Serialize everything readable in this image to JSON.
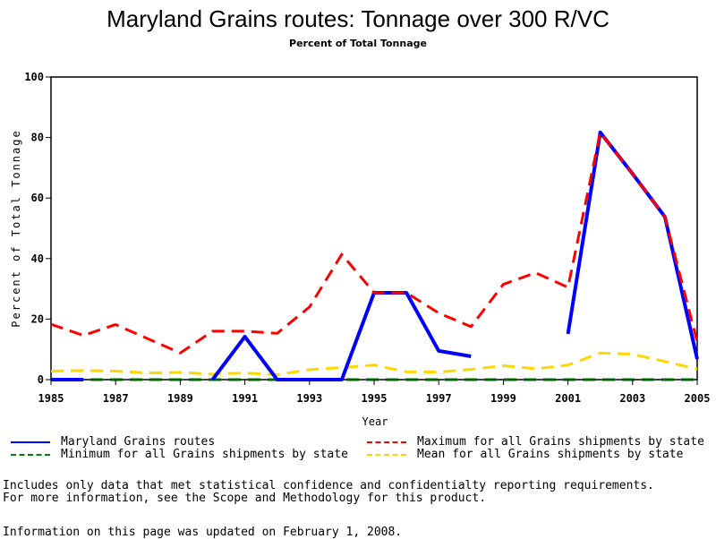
{
  "chart_data": {
    "type": "line",
    "title": "Maryland Grains routes: Tonnage over 300 R/VC",
    "subtitle": "Percent of Total Tonnage",
    "xlabel": "Year",
    "ylabel": "Percent of Total Tonnage",
    "xlim": [
      1985,
      2005
    ],
    "ylim": [
      0,
      100
    ],
    "x_ticks": [
      1985,
      1987,
      1989,
      1991,
      1993,
      1995,
      1997,
      1999,
      2001,
      2003,
      2005
    ],
    "x_minor_ticks": [
      1985,
      1987,
      1989,
      1991,
      1993,
      1995,
      1997,
      1999,
      2001,
      2003,
      2005
    ],
    "y_ticks": [
      0,
      20,
      40,
      60,
      80,
      100
    ],
    "grid": false,
    "legend_position": "bottom",
    "x": [
      1985,
      1986,
      1987,
      1988,
      1989,
      1990,
      1991,
      1992,
      1993,
      1994,
      1995,
      1996,
      1997,
      1998,
      1999,
      2000,
      2001,
      2002,
      2003,
      2004,
      2005
    ],
    "series": [
      {
        "name": "Maryland Grains routes",
        "color": "#0000ff",
        "style": "solid",
        "values": [
          0,
          0,
          null,
          null,
          null,
          0,
          14.2,
          0,
          0,
          0,
          28.7,
          28.7,
          9.5,
          7.7,
          null,
          null,
          15.1,
          81.7,
          68.0,
          53.8,
          6.8
        ]
      },
      {
        "name": "Maximum for all Grains shipments by state",
        "color": "#ff0000",
        "style": "dashed",
        "values": [
          18.3,
          14.6,
          18.2,
          13.5,
          8.8,
          16.0,
          16.0,
          15.3,
          24.0,
          41.4,
          28.7,
          28.7,
          22.0,
          17.5,
          31.5,
          35.3,
          30.5,
          81.7,
          68.0,
          53.8,
          12.5
        ]
      },
      {
        "name": "Minimum for all Grains shipments by state",
        "color": "#006400",
        "style": "dashed",
        "values": [
          0,
          0,
          0,
          0,
          0,
          0,
          0,
          0,
          0,
          0,
          0,
          0,
          0,
          0,
          0,
          0,
          0,
          0,
          0,
          0,
          0
        ]
      },
      {
        "name": "Mean for all Grains shipments by state",
        "color": "#ffd700",
        "style": "dashed",
        "values": [
          2.8,
          3.0,
          2.8,
          2.2,
          2.4,
          1.8,
          2.2,
          1.6,
          3.3,
          4.0,
          4.8,
          2.6,
          2.5,
          3.4,
          4.6,
          3.6,
          4.8,
          8.8,
          8.4,
          6.0,
          3.5
        ]
      }
    ]
  },
  "legend": [
    {
      "label": "Maryland Grains routes",
      "color": "#0000ff",
      "style": "solid"
    },
    {
      "label": "Maximum for all Grains shipments by state",
      "color": "#ff0000",
      "style": "dashed"
    },
    {
      "label": "Minimum for all Grains shipments by state",
      "color": "#006400",
      "style": "dashed"
    },
    {
      "label": "Mean for all Grains shipments by state",
      "color": "#ffd700",
      "style": "dashed"
    }
  ],
  "footnotes": {
    "line1": "Includes only data that met statistical confidence and confidentialty reporting requirements.",
    "line2": "For more information, see the Scope and Methodology for this product.",
    "updated": "Information on this page was updated on February 1, 2008."
  }
}
